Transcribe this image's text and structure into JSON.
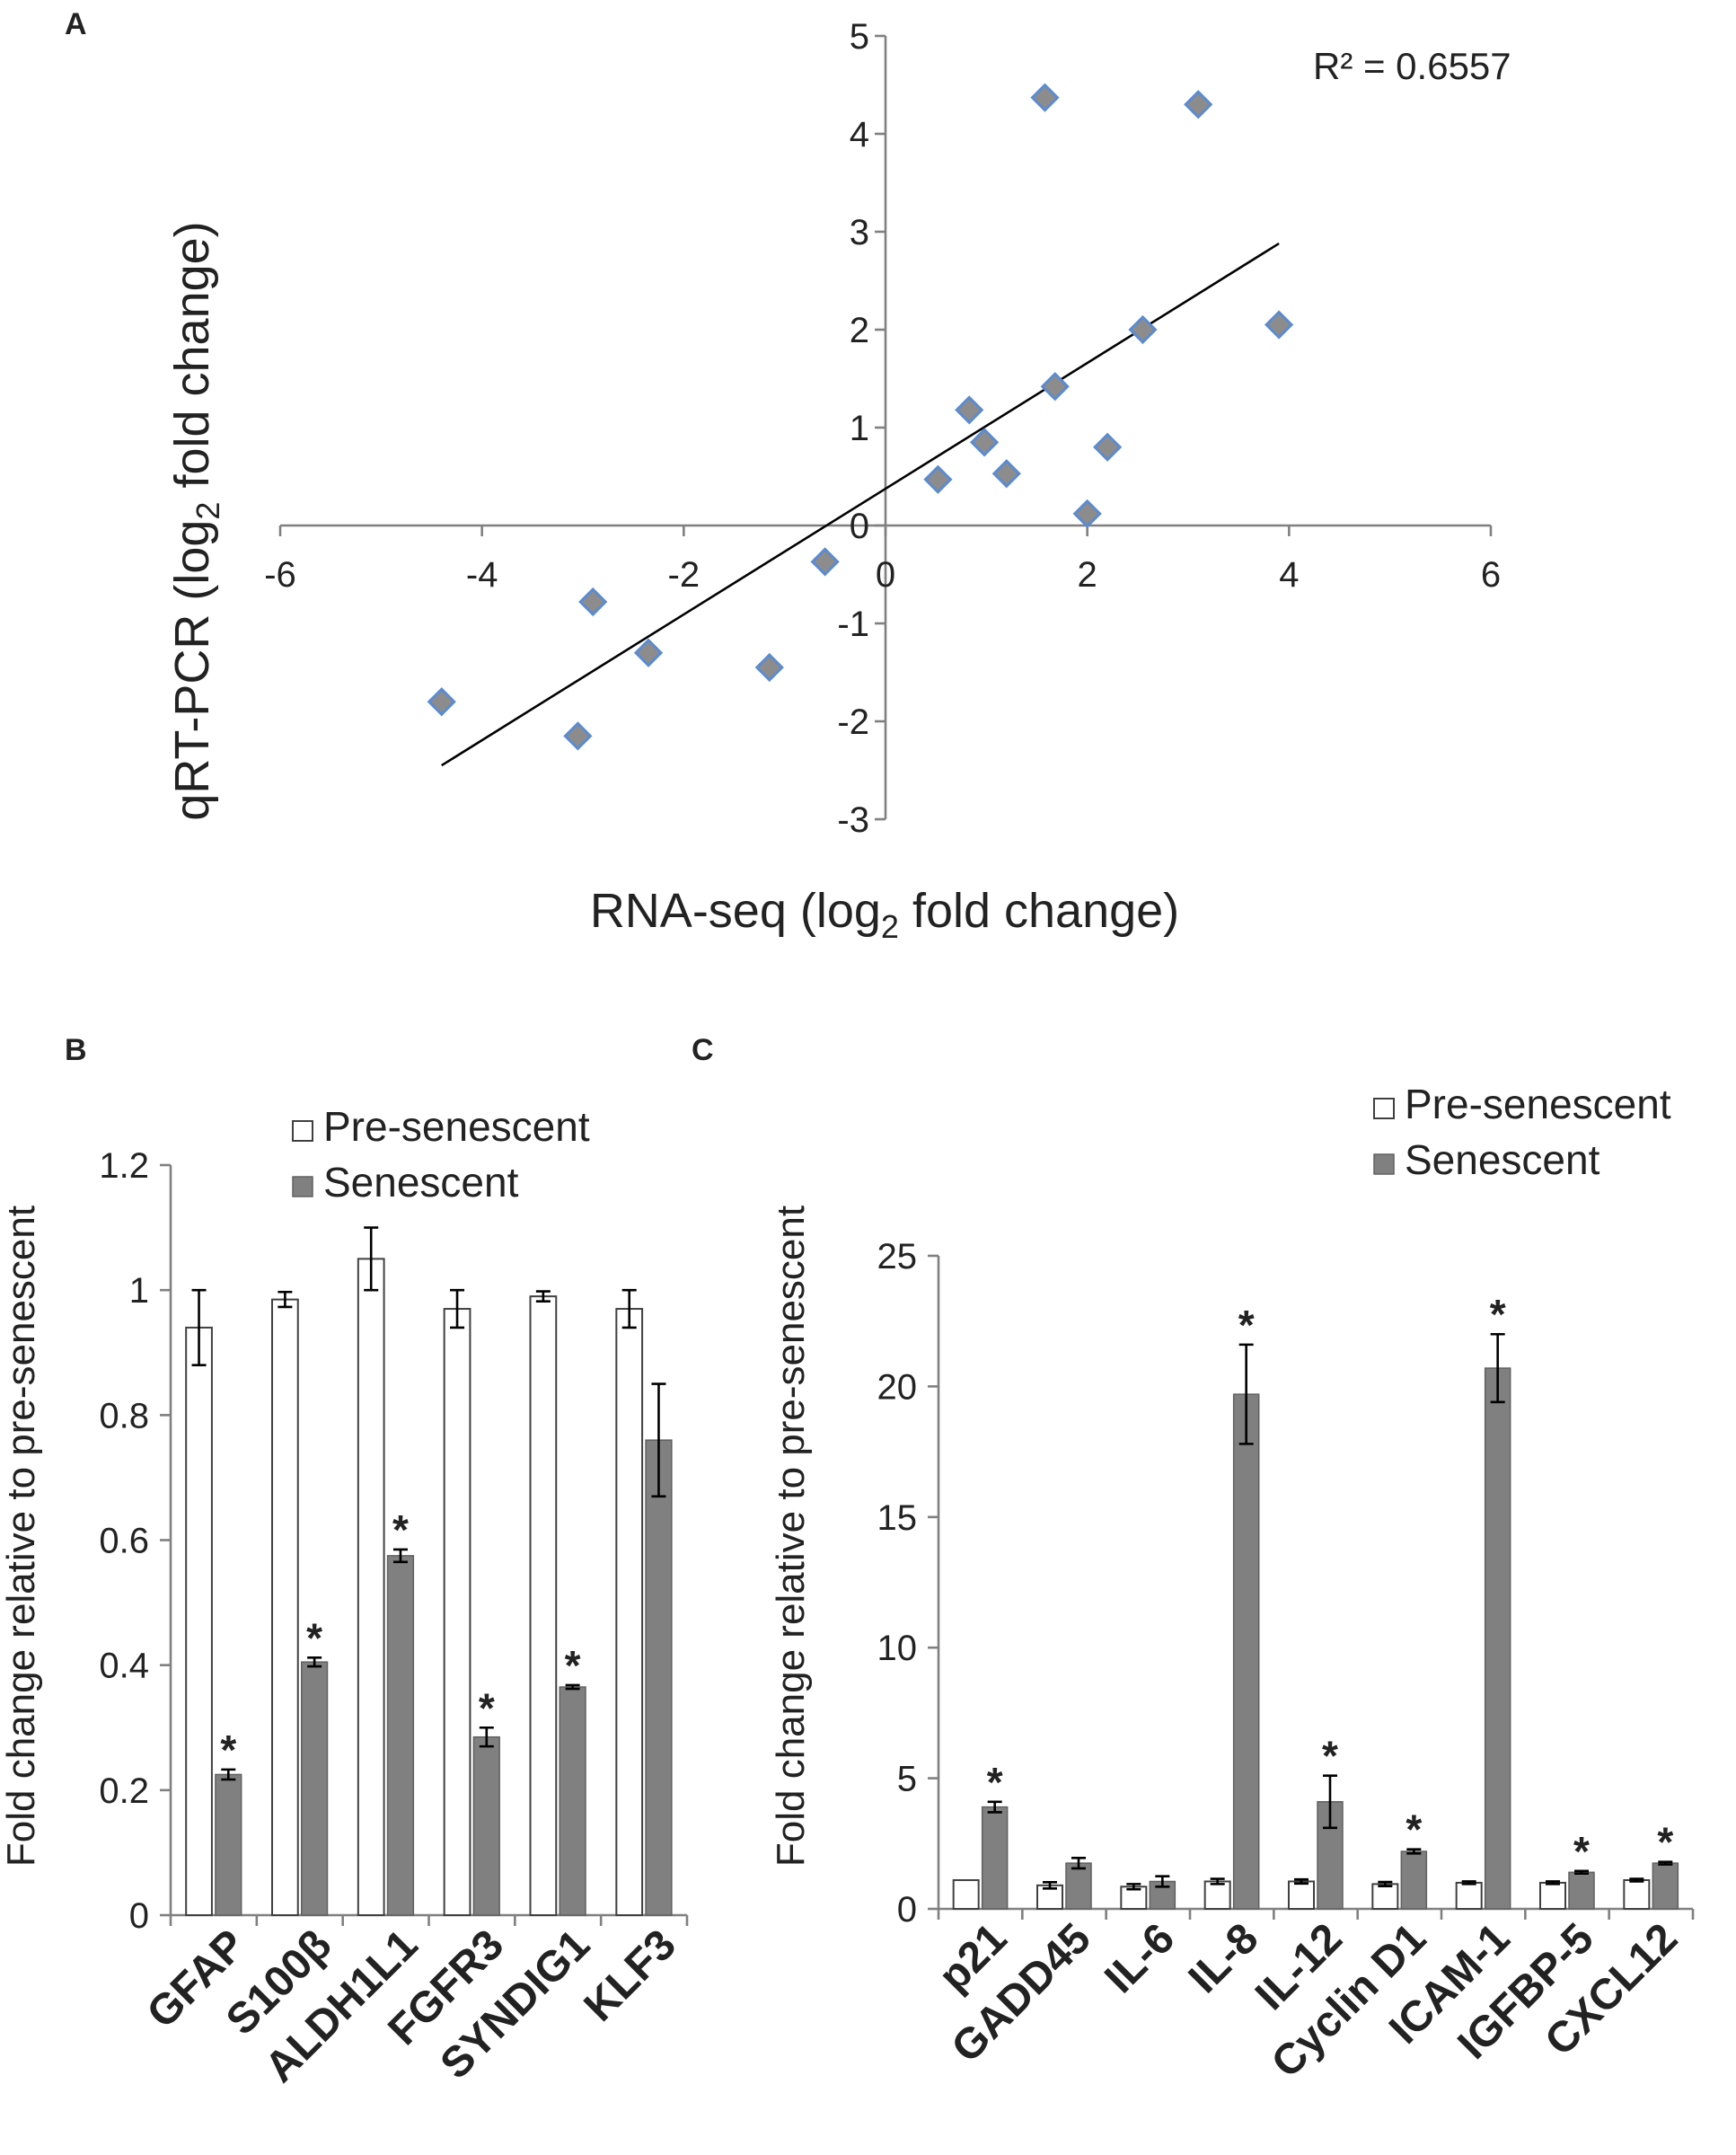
{
  "chart_data": [
    {
      "panel": "A",
      "type": "scatter",
      "xlabel_prefix": "RNA-seq (log",
      "xlabel_sub": "2",
      "xlabel_suffix": " fold change)",
      "ylabel_prefix": "qRT-PCR (log",
      "ylabel_sub": "2",
      "ylabel_suffix": "  fold change)",
      "xlim": [
        -6,
        6
      ],
      "ylim": [
        -3,
        5
      ],
      "xticks": [
        -6,
        -4,
        -2,
        0,
        2,
        4,
        6
      ],
      "yticks": [
        -3,
        -2,
        -1,
        0,
        1,
        2,
        3,
        4,
        5
      ],
      "annotation": "R² = 0.6557",
      "trendline": {
        "x": [
          -4.4,
          3.9
        ],
        "y": [
          -2.45,
          2.88
        ]
      },
      "points": [
        {
          "x": 1.58,
          "y": 4.37
        },
        {
          "x": 3.1,
          "y": 4.3
        },
        {
          "x": 3.9,
          "y": 2.05
        },
        {
          "x": 2.55,
          "y": 2.0
        },
        {
          "x": 1.68,
          "y": 1.42
        },
        {
          "x": 0.83,
          "y": 1.18
        },
        {
          "x": 0.98,
          "y": 0.85
        },
        {
          "x": 2.2,
          "y": 0.8
        },
        {
          "x": 1.2,
          "y": 0.53
        },
        {
          "x": 0.52,
          "y": 0.47
        },
        {
          "x": 2.0,
          "y": 0.12
        },
        {
          "x": -0.6,
          "y": -0.37
        },
        {
          "x": -2.9,
          "y": -0.78
        },
        {
          "x": -2.35,
          "y": -1.3
        },
        {
          "x": -1.15,
          "y": -1.45
        },
        {
          "x": -4.4,
          "y": -1.8
        },
        {
          "x": -3.05,
          "y": -2.15
        }
      ]
    },
    {
      "panel": "B",
      "type": "bar",
      "ylabel": "Fold change relative to pre-senescent",
      "ylim": [
        0,
        1.2
      ],
      "yticks": [
        "0",
        "0.2",
        "0.4",
        "0.6",
        "0.8",
        "1",
        "1.2"
      ],
      "yticks_values": [
        0,
        0.2,
        0.4,
        0.6,
        0.8,
        1.0,
        1.2
      ],
      "categories": [
        "GFAP",
        "S100β",
        "ALDH1L1",
        "FGFR3",
        "SYNDIG1",
        "KLF3"
      ],
      "legend": [
        "Pre-senescent",
        "Senescent"
      ],
      "series": [
        {
          "name": "Pre-senescent",
          "values": [
            0.94,
            0.985,
            1.05,
            0.97,
            0.99,
            0.97
          ],
          "errors": [
            0.06,
            0.012,
            0.05,
            0.03,
            0.008,
            0.03
          ]
        },
        {
          "name": "Senescent",
          "values": [
            0.225,
            0.405,
            0.575,
            0.285,
            0.365,
            0.76
          ],
          "errors": [
            0.008,
            0.007,
            0.01,
            0.015,
            0.003,
            0.09
          ]
        }
      ],
      "significance": [
        "*",
        "*",
        "*",
        "*",
        "*",
        ""
      ]
    },
    {
      "panel": "C",
      "type": "bar",
      "ylabel": "Fold change relative to pre-senescent",
      "ylim": [
        0,
        25
      ],
      "yticks": [
        "0",
        "5",
        "10",
        "15",
        "20",
        "25"
      ],
      "yticks_values": [
        0,
        5,
        10,
        15,
        20,
        25
      ],
      "categories": [
        "p21",
        "GADD45",
        "IL-6",
        "IL-8",
        "IL-12",
        "Cyclin D1",
        "ICAM-1",
        "IGFBP-5",
        "CXCL12"
      ],
      "legend": [
        "Pre-senescent",
        "Senescent"
      ],
      "series": [
        {
          "name": "Pre-senescent",
          "values": [
            1.1,
            0.9,
            0.85,
            1.05,
            1.05,
            0.95,
            1.0,
            1.0,
            1.1
          ],
          "errors": [
            0,
            0.12,
            0.1,
            0.1,
            0.08,
            0.08,
            0.05,
            0.05,
            0.05
          ]
        },
        {
          "name": "Senescent",
          "values": [
            3.9,
            1.75,
            1.05,
            19.7,
            4.1,
            2.2,
            20.7,
            1.4,
            1.75
          ],
          "errors": [
            0.2,
            0.2,
            0.2,
            1.9,
            1.0,
            0.08,
            1.3,
            0.05,
            0.05
          ]
        }
      ],
      "significance": [
        "*",
        "",
        "",
        "*",
        "*",
        "*",
        "*",
        "*",
        "*"
      ]
    }
  ],
  "panels": {
    "a_label": "A",
    "b_label": "B",
    "c_label": "C"
  }
}
